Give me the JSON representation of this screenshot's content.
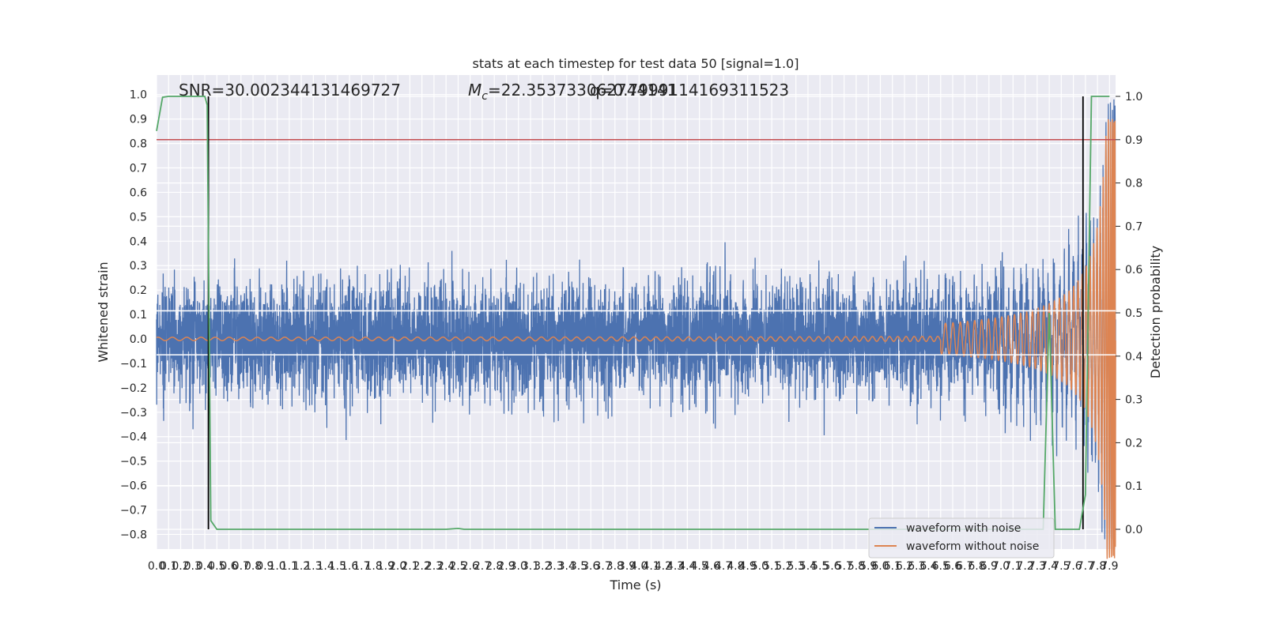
{
  "chart_data": {
    "type": "line",
    "title": "stats at each timestep for test data 50 [signal=1.0]",
    "xlabel": "Time (s)",
    "ylabel_left": "Whitened strain",
    "ylabel_right": "Detection probability",
    "xlim": [
      0.0,
      7.95
    ],
    "ylim_left": [
      -0.86,
      1.08
    ],
    "ylim_right": [
      0.0,
      1.0
    ],
    "grid": true,
    "legend_position": "bottom-right",
    "x_ticks": [
      "0.0",
      "0.1",
      "0.2",
      "0.3",
      "0.4",
      "0.5",
      "0.6",
      "0.7",
      "0.8",
      "0.9",
      "1.0",
      "1.1",
      "1.2",
      "1.3",
      "1.4",
      "1.5",
      "1.6",
      "1.7",
      "1.8",
      "1.9",
      "2.0",
      "2.1",
      "2.2",
      "2.3",
      "2.4",
      "2.5",
      "2.6",
      "2.7",
      "2.8",
      "2.9",
      "3.0",
      "3.1",
      "3.2",
      "3.3",
      "3.4",
      "3.5",
      "3.6",
      "3.7",
      "3.8",
      "3.9",
      "4.0",
      "4.1",
      "4.2",
      "4.3",
      "4.4",
      "4.5",
      "4.6",
      "4.7",
      "4.8",
      "4.9",
      "5.0",
      "5.1",
      "5.2",
      "5.3",
      "5.4",
      "5.5",
      "5.6",
      "5.7",
      "5.8",
      "5.9",
      "6.0",
      "6.1",
      "6.2",
      "6.3",
      "6.4",
      "6.5",
      "6.6",
      "6.7",
      "6.8",
      "6.9",
      "7.0",
      "7.1",
      "7.2",
      "7.3",
      "7.4",
      "7.5",
      "7.6",
      "7.7",
      "7.8",
      "7.9"
    ],
    "y_ticks_left": [
      "1.0",
      "0.9",
      "0.8",
      "0.7",
      "0.6",
      "0.5",
      "0.4",
      "0.3",
      "0.2",
      "0.1",
      "0.0",
      "−0.1",
      "−0.2",
      "−0.3",
      "−0.4",
      "−0.5",
      "−0.6",
      "−0.7",
      "−0.8"
    ],
    "y_ticks_right": [
      "1.0",
      "0.9",
      "0.8",
      "0.7",
      "0.6",
      "0.5",
      "0.4",
      "0.3",
      "0.2",
      "0.1",
      "0.0"
    ],
    "annotations": {
      "snr": "SNR=30.002344131469727",
      "mc_prefix": "M",
      "mc_subscript": "c",
      "mc_value": "=22.353733062744141",
      "q_overlap": "q=0.7999114169311523"
    },
    "series": [
      {
        "name": "waveform with noise",
        "color": "#4c72b0",
        "axis": "left",
        "kind": "noise",
        "approx_amplitude": 0.35
      },
      {
        "name": "waveform without noise",
        "color": "#dd8452",
        "axis": "left",
        "kind": "chirp",
        "end_amplitude": 0.9
      },
      {
        "color": "#55a868",
        "axis": "right",
        "x": [
          0.0,
          0.05,
          0.1,
          0.2,
          0.3,
          0.4,
          0.42,
          0.45,
          0.5,
          0.55,
          2.4,
          2.5,
          2.55,
          7.3,
          7.35,
          7.4,
          7.45,
          7.5,
          7.55,
          7.65,
          7.7,
          7.75,
          7.8,
          7.9
        ],
        "y": [
          0.92,
          0.998,
          1.0,
          1.0,
          1.0,
          1.0,
          0.98,
          0.02,
          0.0,
          0.0,
          0.0,
          0.002,
          0.0,
          0.0,
          0.0,
          0.5,
          0.0,
          0.0,
          0.0,
          0.0,
          0.08,
          1.0,
          1.0,
          1.0
        ]
      }
    ],
    "threshold_line": {
      "value": 0.9,
      "axis": "right",
      "color": "#c44e52"
    },
    "horizontal_lines_left": [
      0.115,
      -0.065
    ],
    "vertical_markers": [
      0.43,
      7.68
    ]
  }
}
